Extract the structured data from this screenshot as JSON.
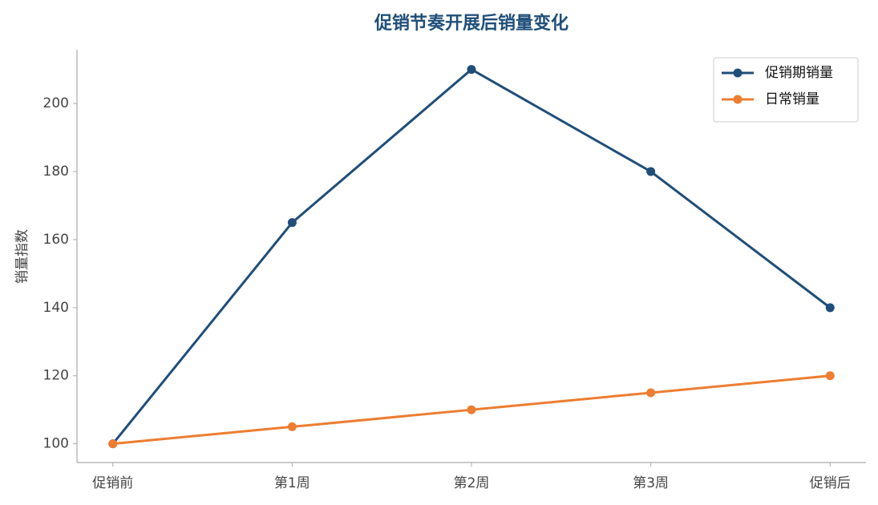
{
  "chart_data": {
    "type": "line",
    "title": "促销节奏开展后销量变化",
    "y_label": "销量指数",
    "categories": [
      "促销前",
      "第1周",
      "第2周",
      "第3周",
      "促销后"
    ],
    "series": [
      {
        "name": "促销期销量",
        "color": "#1f4e79",
        "values": [
          100,
          165,
          210,
          180,
          140
        ]
      },
      {
        "name": "日常销量",
        "color": "#ed7d31",
        "values": [
          100,
          105,
          110,
          115,
          120
        ]
      }
    ],
    "ylim": [
      94.5,
      215.8
    ],
    "yticks": [
      100,
      120,
      140,
      160,
      180,
      200
    ],
    "grid": false,
    "legend": "upper right"
  }
}
